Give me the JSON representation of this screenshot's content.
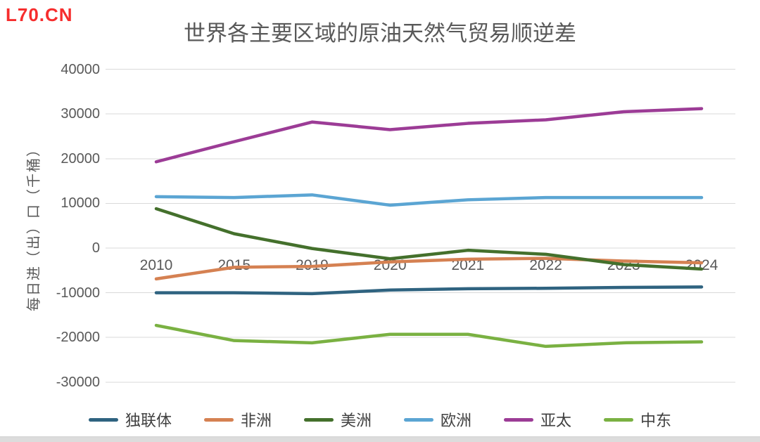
{
  "watermark": "L70.CN",
  "chart_data": {
    "type": "line",
    "title": "世界各主要区域的原油天然气贸易顺逆差",
    "y_axis_title": "每日进（出）口（千桶）",
    "categories": [
      "2010",
      "2015",
      "2019",
      "2020",
      "2021",
      "2022",
      "2023",
      "2024"
    ],
    "y_ticks": [
      40000,
      30000,
      20000,
      10000,
      0,
      -10000,
      -20000,
      -30000
    ],
    "ylim": [
      -30000,
      40000
    ],
    "grid": true,
    "legend_position": "bottom",
    "series": [
      {
        "name": "独联体",
        "color": "#2F6380",
        "values": [
          -10000,
          -10000,
          -10200,
          -9400,
          -9100,
          -9000,
          -8800,
          -8700
        ]
      },
      {
        "name": "非洲",
        "color": "#D58152",
        "values": [
          -6900,
          -4300,
          -4100,
          -3100,
          -2500,
          -2300,
          -2900,
          -3300
        ]
      },
      {
        "name": "美洲",
        "color": "#44702C",
        "values": [
          8800,
          3200,
          -100,
          -2400,
          -500,
          -1400,
          -3700,
          -4700
        ]
      },
      {
        "name": "欧洲",
        "color": "#5BA5D3",
        "values": [
          11500,
          11300,
          11900,
          9600,
          10800,
          11300,
          11300,
          11300
        ]
      },
      {
        "name": "亚太",
        "color": "#9C3C96",
        "values": [
          19300,
          23800,
          28200,
          26500,
          27900,
          28700,
          30500,
          31200
        ]
      },
      {
        "name": "中东",
        "color": "#7AB142",
        "values": [
          -17300,
          -20700,
          -21200,
          -19300,
          -19300,
          -22000,
          -21200,
          -21000
        ]
      }
    ]
  },
  "colors": {
    "title_text": "#595959",
    "tick_text": "#595959",
    "legend_text": "#404040",
    "watermark": "#F62D2D",
    "gridline": "#D9D9D9",
    "bottom_bar": "#DCDCDC"
  }
}
